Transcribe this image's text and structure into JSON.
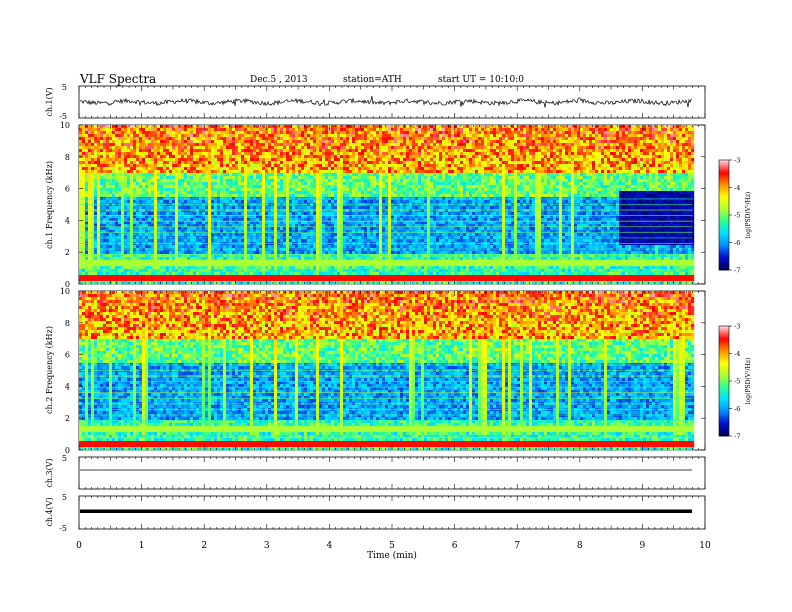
{
  "header": {
    "title": "VLF Spectra",
    "date": "Dec.5 , 2013",
    "station": "station=ATH",
    "start": "start UT = 10:10:0"
  },
  "chart_data": [
    {
      "type": "line",
      "name": "ch1-waveform",
      "ylabel": "ch.1(V)",
      "yticks": [
        "5",
        "-5"
      ],
      "ylim": [
        -5,
        5
      ],
      "xlim": [
        0,
        10
      ],
      "data_end": 9.8,
      "approx_level": 0,
      "approx_amplitude": 0.7
    },
    {
      "type": "heatmap",
      "name": "ch1-spectrogram",
      "ylabel": "ch.1 Frequency (kHz)",
      "ylim": [
        0,
        10
      ],
      "yticks": [
        "0",
        "2",
        "4",
        "6",
        "8",
        "10"
      ],
      "xlim": [
        0,
        9.8
      ],
      "colorbar": {
        "label": "log(PSD(V²/Hz)",
        "range": [
          -7,
          -3
        ],
        "ticks": [
          "-3",
          "-4",
          "-5",
          "-6",
          "-7"
        ]
      }
    },
    {
      "type": "heatmap",
      "name": "ch2-spectrogram",
      "ylabel": "ch.2 Frequency (kHz)",
      "ylim": [
        0,
        10
      ],
      "yticks": [
        "0",
        "2",
        "4",
        "6",
        "8",
        "10"
      ],
      "xlim": [
        0,
        9.8
      ],
      "colorbar": {
        "label": "log(PSD(V²/Hz)",
        "range": [
          -7,
          -3
        ],
        "ticks": [
          "-3",
          "-4",
          "-5",
          "-6",
          "-7"
        ]
      }
    },
    {
      "type": "line",
      "name": "ch3-waveform",
      "ylabel": "ch.3(V)",
      "yticks": [
        "5"
      ],
      "ylim": [
        -5,
        5
      ],
      "approx_level": 0,
      "approx_amplitude": 0
    },
    {
      "type": "line",
      "name": "ch4-waveform",
      "ylabel": "ch.4(V)",
      "yticks": [
        "5",
        "-5"
      ],
      "ylim": [
        -5,
        5
      ],
      "approx_level": 0,
      "approx_amplitude": 0.3
    }
  ],
  "xaxis": {
    "label": "Time (min)",
    "ticks": [
      "0",
      "1",
      "2",
      "3",
      "4",
      "5",
      "6",
      "7",
      "8",
      "9",
      "10"
    ],
    "range": [
      0,
      10
    ]
  },
  "colors": {
    "colormap": [
      "#00005a",
      "#0010d0",
      "#0090ff",
      "#00e0ff",
      "#30ff90",
      "#b0ff30",
      "#ffff00",
      "#ff9000",
      "#ff0000",
      "#ffd0d0"
    ]
  }
}
